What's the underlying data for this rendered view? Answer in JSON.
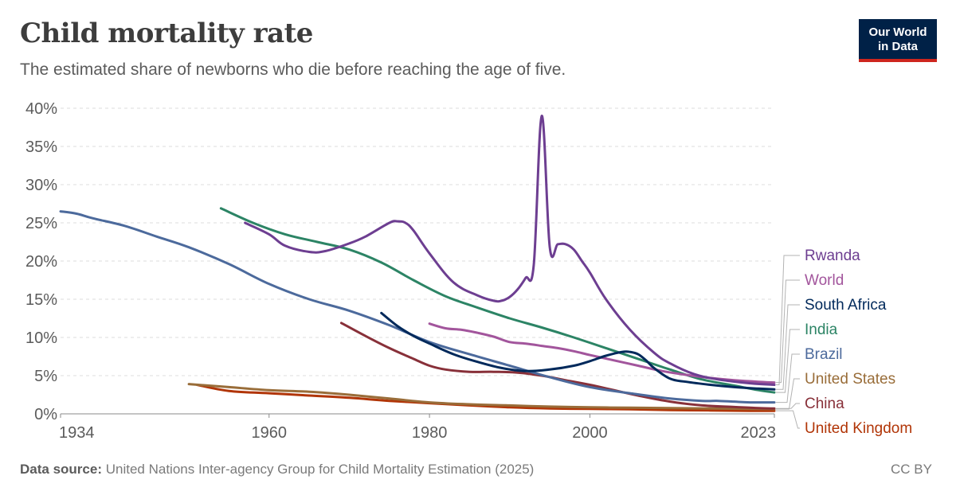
{
  "header": {
    "title": "Child mortality rate",
    "subtitle": "The estimated share of newborns who die before reaching the age of five."
  },
  "logo": {
    "line1": "Our World",
    "line2": "in Data"
  },
  "footer": {
    "source_label": "Data source:",
    "source_text": "United Nations Inter-agency Group for Child Mortality Estimation (2025)",
    "license": "CC BY"
  },
  "chart_data": {
    "type": "line",
    "title": "Child mortality rate",
    "xlabel": "",
    "ylabel": "",
    "xlim": [
      1934,
      2023
    ],
    "ylim": [
      0,
      40
    ],
    "y_ticks": [
      0,
      5,
      10,
      15,
      20,
      25,
      30,
      35,
      40
    ],
    "y_tick_labels": [
      "0%",
      "5%",
      "10%",
      "15%",
      "20%",
      "25%",
      "30%",
      "35%",
      "40%"
    ],
    "x_ticks": [
      1934,
      1960,
      1980,
      2000,
      2023
    ],
    "x_tick_labels": [
      "1934",
      "1960",
      "1980",
      "2000",
      "2023"
    ],
    "grid": true,
    "legend_position": "right",
    "series": [
      {
        "name": "Rwanda",
        "color": "#6d3e91",
        "x": [
          1957,
          1960,
          1962,
          1965,
          1967,
          1970,
          1972,
          1975,
          1976,
          1977,
          1978,
          1980,
          1983,
          1986,
          1988,
          1989,
          1990,
          1991,
          1992,
          1993,
          1994,
          1995,
          1996,
          1997,
          1998,
          1999,
          2000,
          2002,
          2005,
          2008,
          2010,
          2013,
          2016,
          2020,
          2023
        ],
        "y": [
          25,
          23.5,
          22,
          21.2,
          21.3,
          22.3,
          23.2,
          25,
          25.2,
          25,
          24,
          21,
          17.2,
          15.5,
          14.8,
          14.8,
          15.3,
          16.3,
          17.8,
          19.5,
          39,
          21.8,
          22.2,
          22.2,
          21.5,
          20,
          18.5,
          15,
          11,
          8,
          6.6,
          5.2,
          4.5,
          4.0,
          3.8
        ]
      },
      {
        "name": "World",
        "color": "#a2559c",
        "x": [
          1980,
          1982,
          1984,
          1986,
          1988,
          1990,
          1992,
          1994,
          1996,
          1998,
          2000,
          2003,
          2006,
          2009,
          2012,
          2015,
          2018,
          2021,
          2023
        ],
        "y": [
          11.8,
          11.2,
          11.0,
          10.6,
          10.1,
          9.4,
          9.2,
          8.9,
          8.6,
          8.2,
          7.7,
          7.0,
          6.3,
          5.6,
          5.1,
          4.7,
          4.4,
          4.2,
          4.1
        ]
      },
      {
        "name": "South Africa",
        "color": "#00295b",
        "x": [
          1974,
          1976,
          1978,
          1980,
          1983,
          1986,
          1989,
          1992,
          1995,
          1998,
          2000,
          2002,
          2004,
          2005,
          2006,
          2007,
          2008,
          2010,
          2012,
          2015,
          2018,
          2021,
          2023
        ],
        "y": [
          13.2,
          11.5,
          10.2,
          9.2,
          7.8,
          6.8,
          6.0,
          5.6,
          5.8,
          6.3,
          6.9,
          7.6,
          8.1,
          8.1,
          7.8,
          7.0,
          6.0,
          4.6,
          4.2,
          3.8,
          3.5,
          3.3,
          3.2
        ]
      },
      {
        "name": "India",
        "color": "#2c8465",
        "x": [
          1954,
          1958,
          1962,
          1966,
          1970,
          1974,
          1978,
          1982,
          1986,
          1990,
          1994,
          1998,
          2002,
          2006,
          2010,
          2014,
          2018,
          2021,
          2023
        ],
        "y": [
          26.9,
          25.0,
          23.5,
          22.5,
          21.5,
          19.8,
          17.5,
          15.4,
          13.9,
          12.5,
          11.3,
          10.0,
          8.6,
          7.2,
          5.8,
          4.5,
          3.7,
          3.1,
          2.8
        ]
      },
      {
        "name": "Brazil",
        "color": "#4c6a9c",
        "x": [
          1934,
          1936,
          1938,
          1942,
          1946,
          1950,
          1955,
          1960,
          1965,
          1970,
          1975,
          1980,
          1985,
          1990,
          1995,
          2000,
          2005,
          2010,
          2014,
          2016,
          2018,
          2020,
          2023
        ],
        "y": [
          26.5,
          26.2,
          25.6,
          24.6,
          23.2,
          21.8,
          19.6,
          17.0,
          15.0,
          13.5,
          11.6,
          9.4,
          7.8,
          6.3,
          4.8,
          3.5,
          2.7,
          2.0,
          1.7,
          1.7,
          1.6,
          1.5,
          1.5
        ]
      },
      {
        "name": "United States",
        "color": "#996d39",
        "x": [
          1950,
          1955,
          1960,
          1965,
          1970,
          1975,
          1980,
          1985,
          1990,
          1995,
          2000,
          2005,
          2010,
          2015,
          2020,
          2023
        ],
        "y": [
          3.9,
          3.5,
          3.1,
          2.9,
          2.5,
          2.0,
          1.5,
          1.25,
          1.1,
          0.95,
          0.85,
          0.8,
          0.75,
          0.7,
          0.65,
          0.63
        ]
      },
      {
        "name": "China",
        "color": "#883039",
        "x": [
          1969,
          1972,
          1975,
          1978,
          1980,
          1982,
          1985,
          1988,
          1991,
          1994,
          1997,
          2000,
          2003,
          2006,
          2010,
          2014,
          2018,
          2021,
          2023
        ],
        "y": [
          11.9,
          10.2,
          8.6,
          7.2,
          6.3,
          5.8,
          5.5,
          5.5,
          5.4,
          5.0,
          4.4,
          3.8,
          3.1,
          2.4,
          1.6,
          1.1,
          0.9,
          0.75,
          0.7
        ]
      },
      {
        "name": "United Kingdom",
        "color": "#b13507",
        "x": [
          1951,
          1955,
          1960,
          1965,
          1970,
          1975,
          1980,
          1985,
          1990,
          1995,
          2000,
          2005,
          2010,
          2015,
          2020,
          2023
        ],
        "y": [
          3.8,
          3.0,
          2.7,
          2.4,
          2.1,
          1.7,
          1.4,
          1.1,
          0.85,
          0.7,
          0.65,
          0.6,
          0.5,
          0.45,
          0.4,
          0.4
        ]
      }
    ]
  }
}
